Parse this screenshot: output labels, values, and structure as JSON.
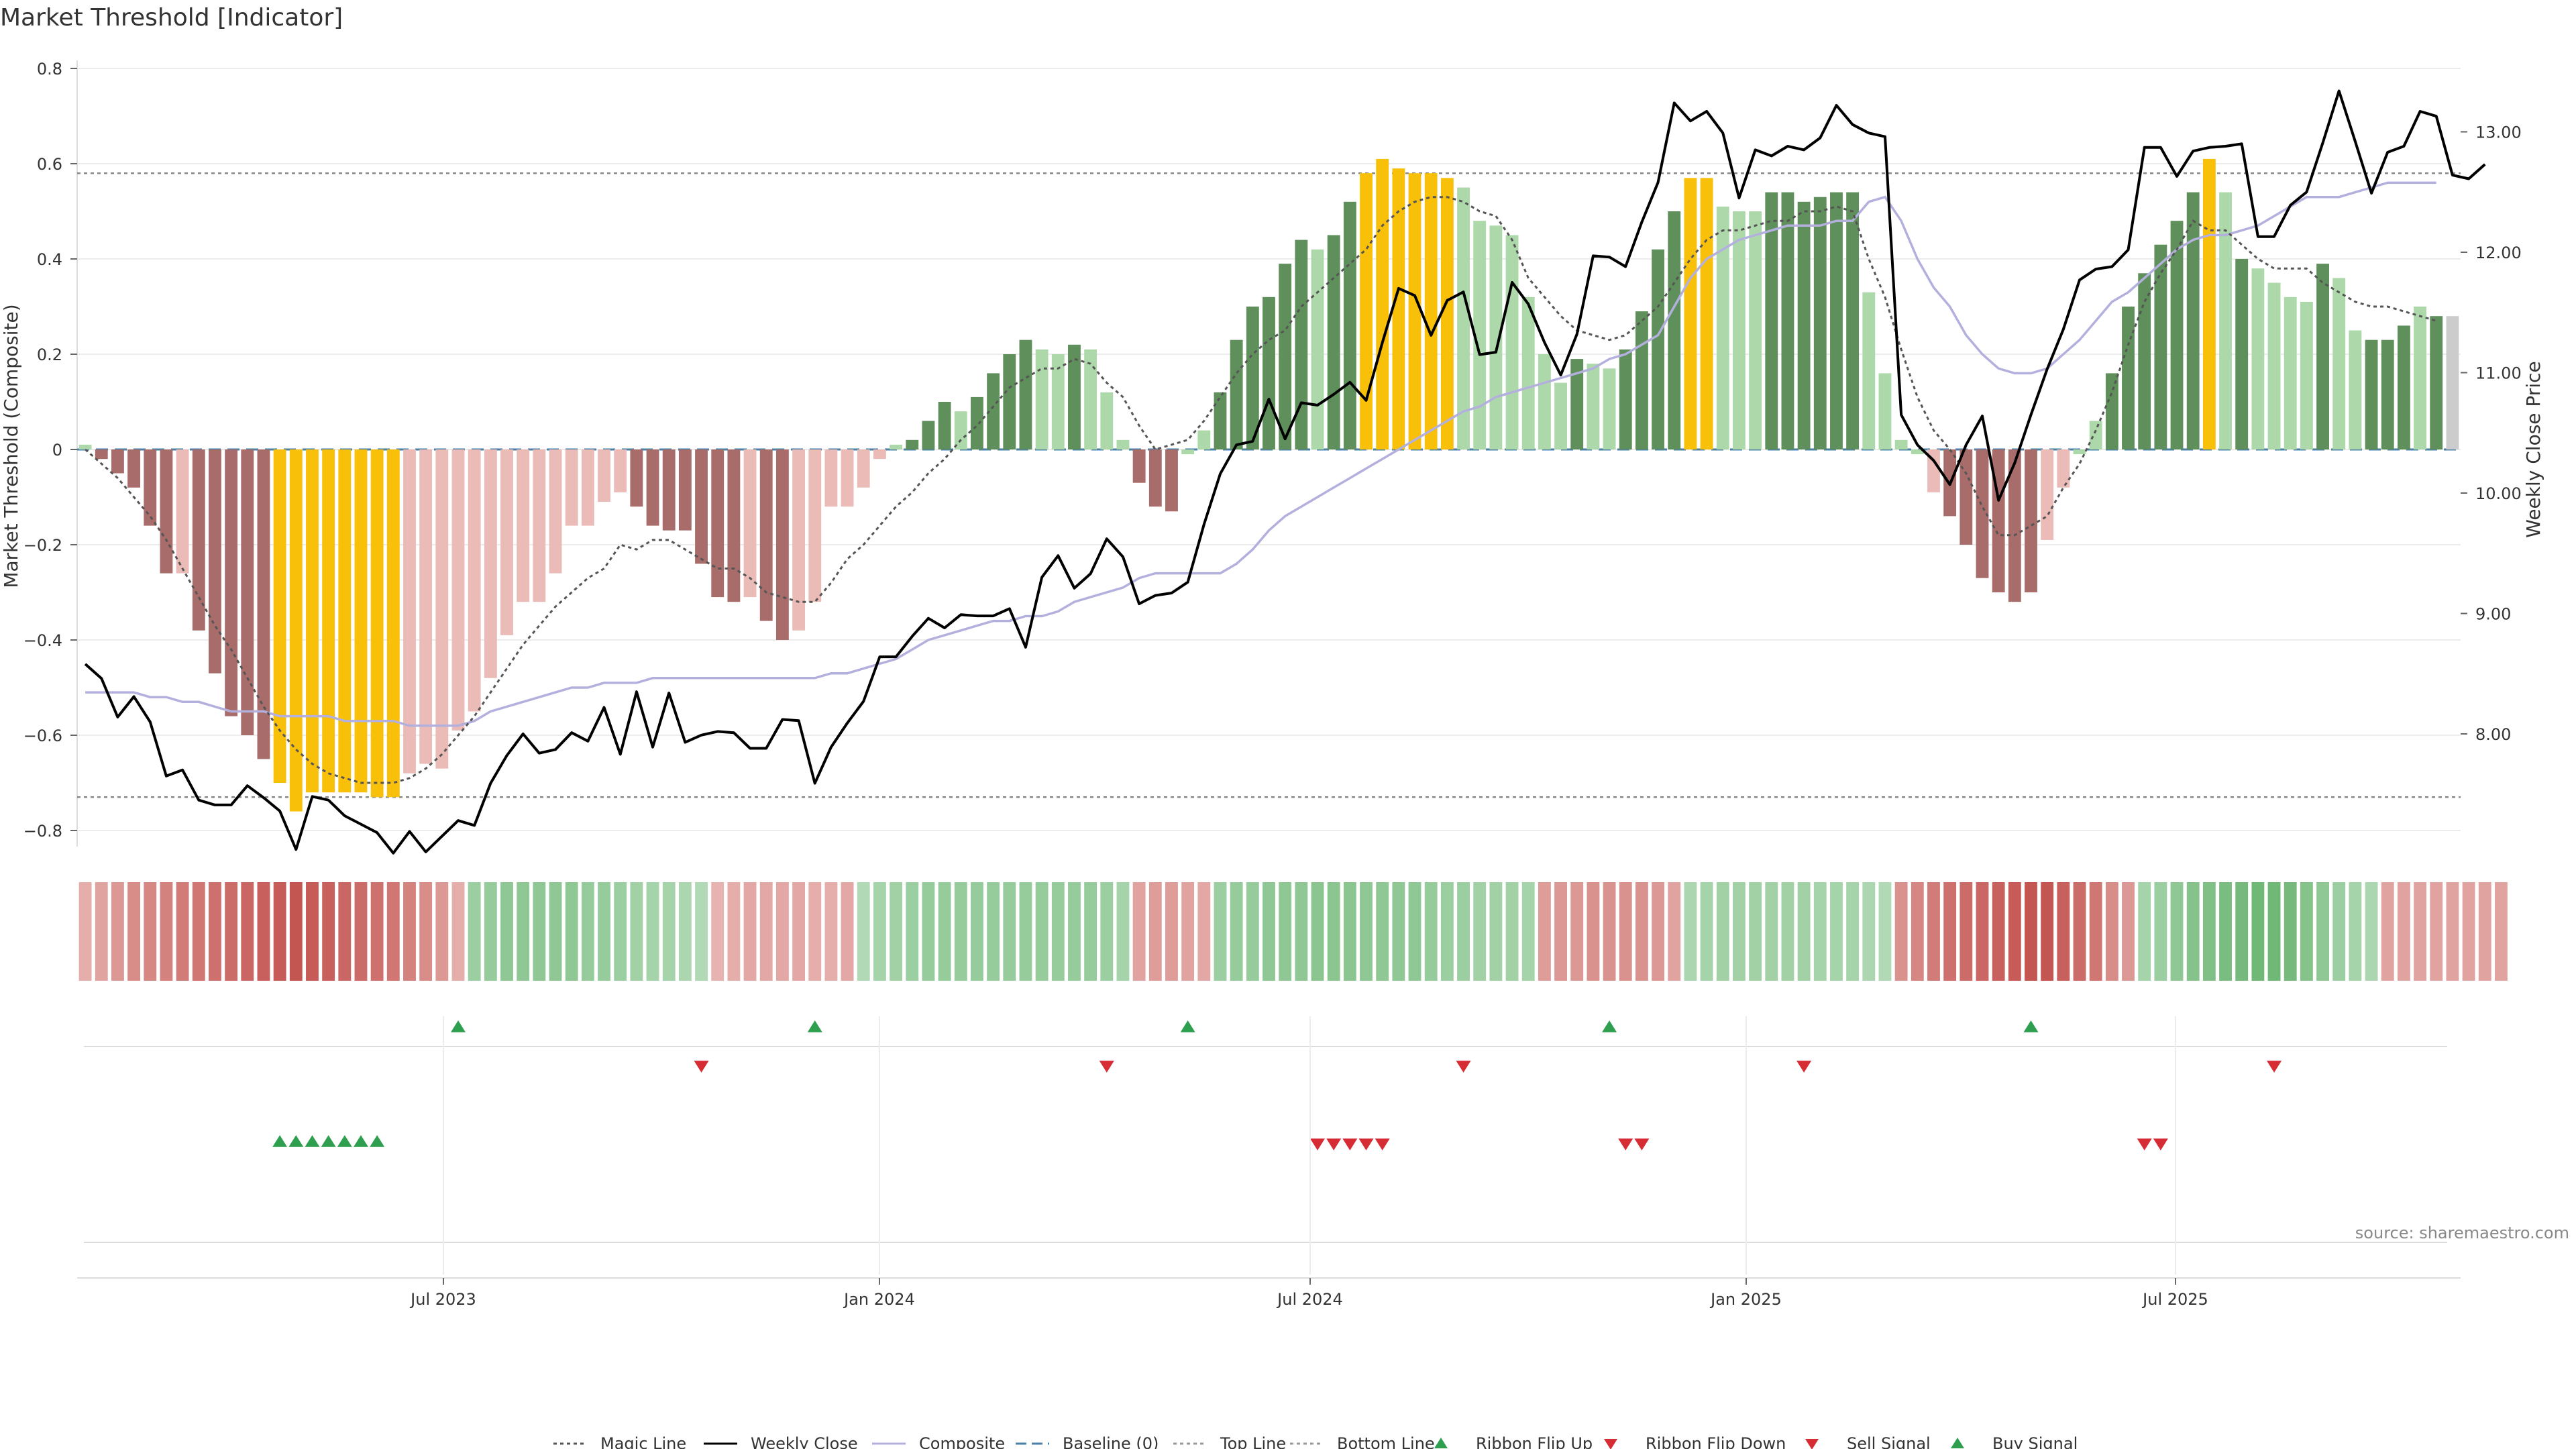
{
  "chart_data": {
    "type": "bar",
    "title": "Market Threshold [Indicator]",
    "ylabel_left": "Market Threshold (Composite)",
    "ylabel_right": "Weekly Close Price",
    "source": "source: sharemaestro.com",
    "ylim_left": [
      -0.84,
      0.84
    ],
    "ylim_right": [
      7.2,
      13.7
    ],
    "yticks_left": [
      "0.8",
      "0.6",
      "0.4",
      "0.2",
      "0",
      "−0.2",
      "−0.4",
      "−0.6",
      "−0.8"
    ],
    "yticks_right": [
      "13.00",
      "12.00",
      "11.00",
      "10.00",
      "9.00",
      "8.00"
    ],
    "xticks": [
      "Jul 2023",
      "Jan 2024",
      "Jul 2024",
      "Jan 2025",
      "Jul 2025"
    ],
    "top_line": 0.58,
    "bottom_line": -0.73,
    "grid": true,
    "legend_position": "bottom-center",
    "composite": [
      0.01,
      -0.02,
      -0.05,
      -0.08,
      -0.16,
      -0.26,
      -0.26,
      -0.38,
      -0.47,
      -0.56,
      -0.6,
      -0.65,
      -0.7,
      -0.76,
      -0.72,
      -0.72,
      -0.72,
      -0.72,
      -0.73,
      -0.73,
      -0.68,
      -0.66,
      -0.67,
      -0.59,
      -0.55,
      -0.48,
      -0.39,
      -0.32,
      -0.32,
      -0.26,
      -0.16,
      -0.16,
      -0.11,
      -0.09,
      -0.12,
      -0.16,
      -0.17,
      -0.17,
      -0.24,
      -0.31,
      -0.32,
      -0.31,
      -0.36,
      -0.4,
      -0.38,
      -0.32,
      -0.12,
      -0.12,
      -0.08,
      -0.02,
      0.01,
      0.02,
      0.06,
      0.1,
      0.08,
      0.11,
      0.16,
      0.2,
      0.23,
      0.21,
      0.2,
      0.22,
      0.21,
      0.12,
      0.02,
      -0.07,
      -0.12,
      -0.13,
      -0.01,
      0.04,
      0.12,
      0.23,
      0.3,
      0.32,
      0.39,
      0.44,
      0.42,
      0.45,
      0.52,
      0.58,
      0.61,
      0.59,
      0.58,
      0.58,
      0.57,
      0.55,
      0.48,
      0.47,
      0.45,
      0.32,
      0.2,
      0.14,
      0.19,
      0.18,
      0.17,
      0.21,
      0.29,
      0.42,
      0.5,
      0.57,
      0.57,
      0.51,
      0.5,
      0.5,
      0.54,
      0.54,
      0.52,
      0.53,
      0.54,
      0.54,
      0.33,
      0.16,
      0.02,
      -0.01,
      -0.09,
      -0.14,
      -0.2,
      -0.27,
      -0.3,
      -0.32,
      -0.3,
      -0.19,
      -0.08,
      -0.01,
      0.06,
      0.16,
      0.3,
      0.37,
      0.43,
      0.48,
      0.54,
      0.61,
      0.54,
      0.4,
      0.38,
      0.35,
      0.32,
      0.31,
      0.39,
      0.36,
      0.25,
      0.23,
      0.23,
      0.26,
      0.3,
      0.28,
      0.28
    ],
    "bar_category": [
      "b",
      "d",
      "d",
      "d",
      "d",
      "d",
      "l",
      "d",
      "d",
      "d",
      "d",
      "d",
      "y",
      "y",
      "y",
      "y",
      "y",
      "y",
      "y",
      "y",
      "l",
      "l",
      "l",
      "l",
      "l",
      "l",
      "l",
      "l",
      "l",
      "l",
      "l",
      "l",
      "l",
      "l",
      "d",
      "d",
      "d",
      "d",
      "d",
      "d",
      "d",
      "l",
      "d",
      "d",
      "l",
      "l",
      "l",
      "l",
      "l",
      "l",
      "g",
      "G",
      "G",
      "G",
      "g",
      "G",
      "G",
      "G",
      "G",
      "g",
      "g",
      "G",
      "g",
      "g",
      "g",
      "d",
      "d",
      "d",
      "g",
      "g",
      "G",
      "G",
      "G",
      "G",
      "G",
      "G",
      "g",
      "G",
      "G",
      "y",
      "y",
      "y",
      "y",
      "y",
      "y",
      "g",
      "g",
      "g",
      "g",
      "g",
      "g",
      "g",
      "G",
      "g",
      "g",
      "G",
      "G",
      "G",
      "G",
      "y",
      "y",
      "g",
      "g",
      "g",
      "G",
      "G",
      "G",
      "G",
      "G",
      "G",
      "g",
      "g",
      "g",
      "g",
      "l",
      "d",
      "d",
      "d",
      "d",
      "d",
      "d",
      "l",
      "l",
      "g",
      "g",
      "G",
      "G",
      "G",
      "G",
      "G",
      "G",
      "y",
      "g",
      "G",
      "g",
      "g",
      "g",
      "g",
      "G",
      "g",
      "g",
      "G",
      "G",
      "G",
      "g",
      "G"
    ],
    "magic_line": [
      0.0,
      -0.03,
      -0.06,
      -0.1,
      -0.14,
      -0.19,
      -0.25,
      -0.31,
      -0.37,
      -0.42,
      -0.48,
      -0.54,
      -0.59,
      -0.63,
      -0.66,
      -0.68,
      -0.69,
      -0.7,
      -0.7,
      -0.7,
      -0.69,
      -0.67,
      -0.64,
      -0.6,
      -0.56,
      -0.51,
      -0.46,
      -0.41,
      -0.37,
      -0.33,
      -0.3,
      -0.27,
      -0.25,
      -0.2,
      -0.21,
      -0.19,
      -0.19,
      -0.21,
      -0.23,
      -0.25,
      -0.25,
      -0.27,
      -0.3,
      -0.31,
      -0.32,
      -0.32,
      -0.28,
      -0.23,
      -0.2,
      -0.16,
      -0.12,
      -0.09,
      -0.05,
      -0.02,
      0.02,
      0.05,
      0.09,
      0.13,
      0.15,
      0.17,
      0.17,
      0.19,
      0.18,
      0.14,
      0.11,
      0.05,
      0.0,
      0.01,
      0.02,
      0.06,
      0.11,
      0.16,
      0.2,
      0.23,
      0.25,
      0.3,
      0.33,
      0.36,
      0.39,
      0.42,
      0.47,
      0.5,
      0.52,
      0.53,
      0.53,
      0.52,
      0.5,
      0.49,
      0.44,
      0.36,
      0.32,
      0.28,
      0.25,
      0.24,
      0.23,
      0.24,
      0.27,
      0.3,
      0.35,
      0.4,
      0.44,
      0.46,
      0.46,
      0.47,
      0.48,
      0.48,
      0.5,
      0.5,
      0.51,
      0.5,
      0.4,
      0.32,
      0.21,
      0.11,
      0.04,
      0.0,
      -0.05,
      -0.12,
      -0.18,
      -0.18,
      -0.16,
      -0.14,
      -0.08,
      -0.03,
      0.04,
      0.12,
      0.22,
      0.31,
      0.37,
      0.42,
      0.48,
      0.46,
      0.46,
      0.43,
      0.4,
      0.38,
      0.38,
      0.38,
      0.35,
      0.33,
      0.31,
      0.3,
      0.3,
      0.29,
      0.28,
      0.27
    ],
    "weekly_close": [
      8.58,
      8.46,
      8.14,
      8.31,
      8.1,
      7.65,
      7.7,
      7.45,
      7.41,
      7.41,
      7.57,
      7.47,
      7.36,
      7.04,
      7.48,
      7.45,
      7.32,
      7.25,
      7.18,
      7.01,
      7.19,
      7.02,
      7.15,
      7.28,
      7.24,
      7.59,
      7.82,
      8.0,
      7.84,
      7.87,
      8.01,
      7.94,
      8.22,
      7.83,
      8.35,
      7.89,
      8.34,
      7.93,
      7.99,
      8.02,
      8.01,
      7.88,
      7.88,
      8.12,
      8.11,
      7.59,
      7.89,
      8.09,
      8.27,
      8.64,
      8.64,
      8.81,
      8.96,
      8.88,
      8.99,
      8.98,
      8.98,
      9.04,
      8.72,
      9.3,
      9.48,
      9.21,
      9.33,
      9.62,
      9.47,
      9.08,
      9.15,
      9.17,
      9.26,
      9.74,
      10.16,
      10.4,
      10.43,
      10.78,
      10.45,
      10.75,
      10.73,
      10.82,
      10.92,
      10.77,
      11.25,
      11.7,
      11.64,
      11.31,
      11.6,
      11.67,
      11.15,
      11.17,
      11.75,
      11.57,
      11.25,
      10.98,
      11.32,
      11.97,
      11.96,
      11.88,
      12.25,
      12.58,
      13.24,
      13.09,
      13.17,
      12.99,
      12.45,
      12.85,
      12.8,
      12.88,
      12.85,
      12.95,
      13.22,
      13.06,
      12.99,
      12.96,
      10.65,
      10.4,
      10.27,
      10.07,
      10.4,
      10.64,
      9.94,
      10.25,
      10.65,
      11.03,
      11.36,
      11.77,
      11.86,
      11.88,
      12.02,
      12.87,
      12.87,
      12.63,
      12.84,
      12.87,
      12.88,
      12.9,
      12.13,
      12.13,
      12.39,
      12.5,
      12.91,
      13.34,
      12.92,
      12.49,
      12.83,
      12.88,
      13.17,
      13.13,
      12.64,
      12.61,
      12.73
    ],
    "composite_smooth": [
      -0.51,
      -0.51,
      -0.51,
      -0.51,
      -0.52,
      -0.52,
      -0.53,
      -0.53,
      -0.54,
      -0.55,
      -0.55,
      -0.55,
      -0.56,
      -0.56,
      -0.56,
      -0.56,
      -0.57,
      -0.57,
      -0.57,
      -0.57,
      -0.58,
      -0.58,
      -0.58,
      -0.58,
      -0.57,
      -0.55,
      -0.54,
      -0.53,
      -0.52,
      -0.51,
      -0.5,
      -0.5,
      -0.49,
      -0.49,
      -0.49,
      -0.48,
      -0.48,
      -0.48,
      -0.48,
      -0.48,
      -0.48,
      -0.48,
      -0.48,
      -0.48,
      -0.48,
      -0.48,
      -0.47,
      -0.47,
      -0.46,
      -0.45,
      -0.44,
      -0.42,
      -0.4,
      -0.39,
      -0.38,
      -0.37,
      -0.36,
      -0.36,
      -0.35,
      -0.35,
      -0.34,
      -0.32,
      -0.31,
      -0.3,
      -0.29,
      -0.27,
      -0.26,
      -0.26,
      -0.26,
      -0.26,
      -0.26,
      -0.24,
      -0.21,
      -0.17,
      -0.14,
      -0.12,
      -0.1,
      -0.08,
      -0.06,
      -0.04,
      -0.02,
      0.0,
      0.02,
      0.04,
      0.06,
      0.08,
      0.09,
      0.11,
      0.12,
      0.13,
      0.14,
      0.15,
      0.16,
      0.17,
      0.19,
      0.2,
      0.22,
      0.24,
      0.3,
      0.36,
      0.4,
      0.42,
      0.44,
      0.45,
      0.46,
      0.47,
      0.47,
      0.47,
      0.48,
      0.48,
      0.52,
      0.53,
      0.48,
      0.4,
      0.34,
      0.3,
      0.24,
      0.2,
      0.17,
      0.16,
      0.16,
      0.17,
      0.2,
      0.23,
      0.27,
      0.31,
      0.33,
      0.36,
      0.39,
      0.42,
      0.44,
      0.45,
      0.45,
      0.46,
      0.47,
      0.49,
      0.51,
      0.53,
      0.53,
      0.53,
      0.54,
      0.55,
      0.56,
      0.56,
      0.56,
      0.56
    ],
    "ribbon": [
      -0.2,
      -0.3,
      -0.4,
      -0.5,
      -0.55,
      -0.6,
      -0.65,
      -0.7,
      -0.75,
      -0.8,
      -0.85,
      -0.9,
      -0.95,
      -1.0,
      -0.95,
      -0.9,
      -0.85,
      -0.8,
      -0.75,
      -0.7,
      -0.6,
      -0.5,
      -0.4,
      -0.2,
      0.5,
      0.55,
      0.6,
      0.6,
      0.6,
      0.6,
      0.6,
      0.55,
      0.55,
      0.5,
      0.45,
      0.4,
      0.4,
      0.35,
      0.3,
      -0.15,
      -0.2,
      -0.25,
      -0.25,
      -0.25,
      -0.25,
      -0.2,
      -0.2,
      -0.25,
      0.3,
      0.4,
      0.45,
      0.5,
      0.55,
      0.55,
      0.55,
      0.55,
      0.55,
      0.55,
      0.55,
      0.55,
      0.55,
      0.55,
      0.55,
      0.5,
      0.4,
      -0.3,
      -0.35,
      -0.35,
      -0.3,
      -0.25,
      0.5,
      0.55,
      0.55,
      0.6,
      0.6,
      0.6,
      0.65,
      0.65,
      0.65,
      0.6,
      0.6,
      0.6,
      0.6,
      0.55,
      0.5,
      0.5,
      0.45,
      0.45,
      0.45,
      0.4,
      -0.35,
      -0.4,
      -0.4,
      -0.45,
      -0.45,
      -0.45,
      -0.45,
      -0.4,
      -0.3,
      0.35,
      0.4,
      0.45,
      0.45,
      0.45,
      0.45,
      0.45,
      0.45,
      0.4,
      0.4,
      0.4,
      0.35,
      0.3,
      -0.45,
      -0.55,
      -0.65,
      -0.75,
      -0.8,
      -0.85,
      -0.9,
      -0.95,
      -1.0,
      -1.0,
      -0.9,
      -0.8,
      -0.7,
      -0.5,
      -0.4,
      0.4,
      0.5,
      0.6,
      0.7,
      0.75,
      0.8,
      0.85,
      0.9,
      0.9,
      0.85,
      0.7,
      0.6,
      0.5,
      0.4,
      0.35,
      -0.3,
      -0.3,
      -0.3,
      -0.3,
      -0.3,
      -0.3,
      -0.3,
      -0.3
    ],
    "ribbon_flip_up_weeks": [
      23,
      45,
      68,
      94,
      120
    ],
    "ribbon_flip_down_weeks": [
      38,
      63,
      85,
      106,
      135
    ],
    "buy_signal_weeks": [
      12,
      13,
      14,
      15,
      16,
      17,
      18
    ],
    "sell_signal_weeks": [
      76,
      77,
      78,
      79,
      80,
      95,
      96,
      127,
      128
    ],
    "series": [
      {
        "name": "Magic Line",
        "color": "#555555",
        "style": "dotted"
      },
      {
        "name": "Weekly Close",
        "color": "#000000",
        "style": "solid"
      },
      {
        "name": "Composite",
        "color": "#b3b0de",
        "style": "solid"
      },
      {
        "name": "Baseline (0)",
        "color": "#4a7fa6",
        "style": "dashed"
      },
      {
        "name": "Top Line",
        "color": "#999999",
        "style": "dotted"
      },
      {
        "name": "Bottom Line",
        "color": "#999999",
        "style": "dotted"
      },
      {
        "name": "Ribbon Flip Up",
        "color": "#2e9e4f",
        "style": "triangle-up"
      },
      {
        "name": "Ribbon Flip Down",
        "color": "#d62d35",
        "style": "triangle-down"
      },
      {
        "name": "Sell Signal",
        "color": "#d62d35",
        "style": "triangle-down"
      },
      {
        "name": "Buy Signal",
        "color": "#2e9e4f",
        "style": "triangle-up"
      }
    ],
    "colors": {
      "strong_neg": "#a86c6a",
      "weak_neg": "#ebbcb7",
      "extreme": "#f9c00a",
      "strong_pos": "#5f8f5b",
      "weak_pos": "#add9aa"
    }
  }
}
